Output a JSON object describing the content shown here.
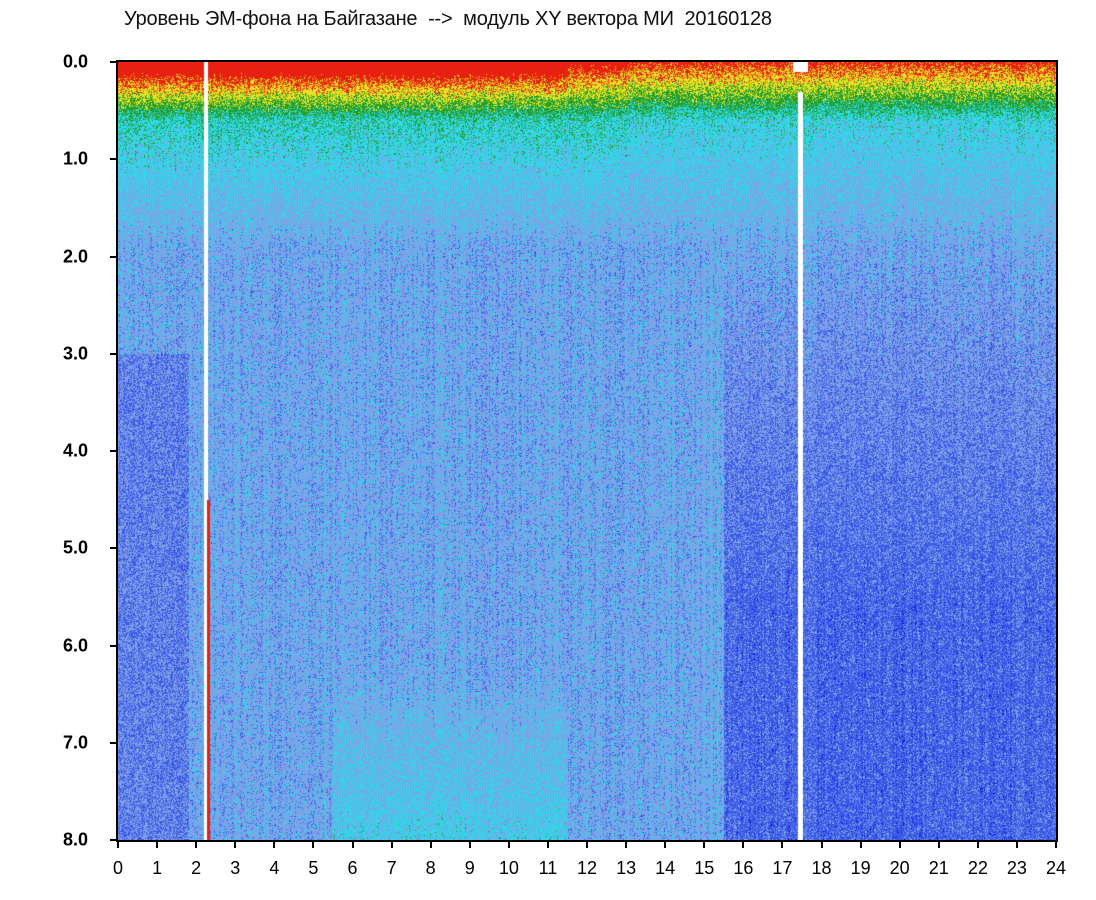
{
  "chart_data": {
    "type": "heatmap",
    "title": "Уровень ЭМ-фона на Байгазане  -->  модуль XY вектора МИ  20160128",
    "xlabel": "",
    "ylabel": "",
    "x_range": [
      0,
      24
    ],
    "y_range": [
      0,
      8
    ],
    "y_axis_inverted": true,
    "x_ticks": [
      "0",
      "1",
      "2",
      "3",
      "4",
      "5",
      "6",
      "7",
      "8",
      "9",
      "10",
      "11",
      "12",
      "13",
      "14",
      "15",
      "16",
      "17",
      "18",
      "19",
      "20",
      "21",
      "22",
      "23",
      "24"
    ],
    "y_ticks": [
      "0.0",
      "1.0",
      "2.0",
      "3.0",
      "4.0",
      "5.0",
      "6.0",
      "7.0",
      "8.0"
    ],
    "grid": false,
    "colormap": [
      "#0a1ee0",
      "#3a5ae6",
      "#7fa0e8",
      "#30d8e8",
      "#20a030",
      "#e8e020",
      "#e82010"
    ],
    "features": {
      "white_gap_hours": [
        2.25,
        17.45
      ],
      "red_line_hour": 2.3,
      "high_activity_top_band_depth": 0.6,
      "dense_dark_region_hours": [
        15.5,
        24
      ],
      "light_region_bottom_hours": [
        5.5,
        11.5
      ]
    }
  }
}
